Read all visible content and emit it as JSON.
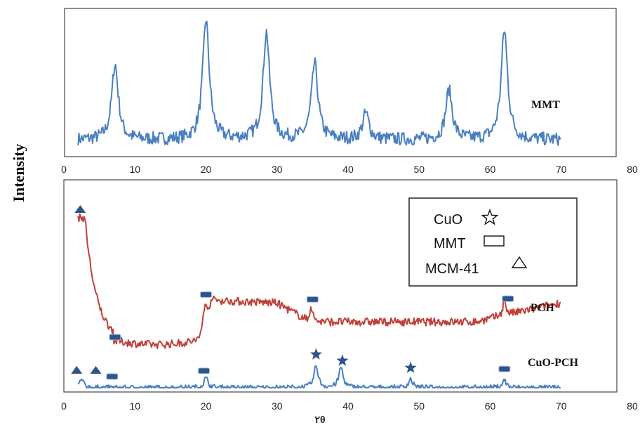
{
  "chart_data": [
    {
      "type": "line",
      "panel": "top",
      "xlim": [
        0,
        80
      ],
      "x_ticks": [
        "0",
        "10",
        "20",
        "30",
        "40",
        "50",
        "60",
        "70",
        "80"
      ],
      "grid": false,
      "series": [
        {
          "name": "MMT",
          "color": "#4a7fc1",
          "x_range": [
            2,
            70
          ],
          "baseline": 8,
          "peaks": [
            {
              "x": 7.2,
              "height": 58
            },
            {
              "x": 20.0,
              "height": 92
            },
            {
              "x": 28.5,
              "height": 82
            },
            {
              "x": 35.3,
              "height": 58
            },
            {
              "x": 42.5,
              "height": 20
            },
            {
              "x": 54.2,
              "height": 38
            },
            {
              "x": 62.0,
              "height": 84
            }
          ]
        }
      ]
    },
    {
      "type": "line",
      "panel": "bottom",
      "xlim": [
        0,
        80
      ],
      "x_ticks": [
        "0",
        "10",
        "20",
        "30",
        "40",
        "50",
        "60",
        "70",
        "80"
      ],
      "xlabel": "٢θ",
      "grid": false,
      "series": [
        {
          "name": "PCH",
          "color": "#c0403a",
          "x_range": [
            2,
            70
          ],
          "peaks": [
            {
              "x": 2.5,
              "height": 100
            },
            {
              "x": 19.8,
              "height": 52
            },
            {
              "x": 34.8,
              "height": 48
            },
            {
              "x": 62.0,
              "height": 50
            }
          ]
        },
        {
          "name": "CuO-PCH",
          "color": "#4a7fc1",
          "x_range": [
            2,
            70
          ],
          "peaks": [
            {
              "x": 2.5,
              "height": 14
            },
            {
              "x": 20.0,
              "height": 17
            },
            {
              "x": 35.5,
              "height": 38
            },
            {
              "x": 39.0,
              "height": 36
            },
            {
              "x": 48.8,
              "height": 15
            },
            {
              "x": 62.0,
              "height": 13
            }
          ]
        }
      ],
      "markers": [
        {
          "type": "MCM-41",
          "series": "PCH",
          "x": 2.3
        },
        {
          "type": "MMT",
          "series": "PCH",
          "x": 7.2
        },
        {
          "type": "MMT",
          "series": "PCH",
          "x": 20.0
        },
        {
          "type": "MMT",
          "series": "PCH",
          "x": 35.0
        },
        {
          "type": "MMT",
          "series": "PCH",
          "x": 62.5
        },
        {
          "type": "MCM-41",
          "series": "CuO-PCH",
          "x": 1.8
        },
        {
          "type": "MCM-41",
          "series": "CuO-PCH",
          "x": 4.5
        },
        {
          "type": "MMT",
          "series": "CuO-PCH",
          "x": 6.8
        },
        {
          "type": "MMT",
          "series": "CuO-PCH",
          "x": 19.7
        },
        {
          "type": "CuO",
          "series": "CuO-PCH",
          "x": 35.5
        },
        {
          "type": "CuO",
          "series": "CuO-PCH",
          "x": 39.2
        },
        {
          "type": "CuO",
          "series": "CuO-PCH",
          "x": 48.8
        },
        {
          "type": "MMT",
          "series": "CuO-PCH",
          "x": 62.0
        }
      ],
      "legend": {
        "placement": "top-right",
        "items": [
          {
            "label": "CuO",
            "symbol": "star"
          },
          {
            "label": "MMT",
            "symbol": "rectangle"
          },
          {
            "label": "MCM-41",
            "symbol": "triangle"
          }
        ]
      }
    }
  ],
  "ylabel": "Intensity",
  "labels": {
    "mmt": "MMT",
    "pch": "PCH",
    "cuo_pch": "CuO-PCH",
    "legend_cuo": "CuO",
    "legend_mmt": "MMT",
    "legend_mcm": "MCM-41"
  },
  "marker_color": "#2e5488"
}
